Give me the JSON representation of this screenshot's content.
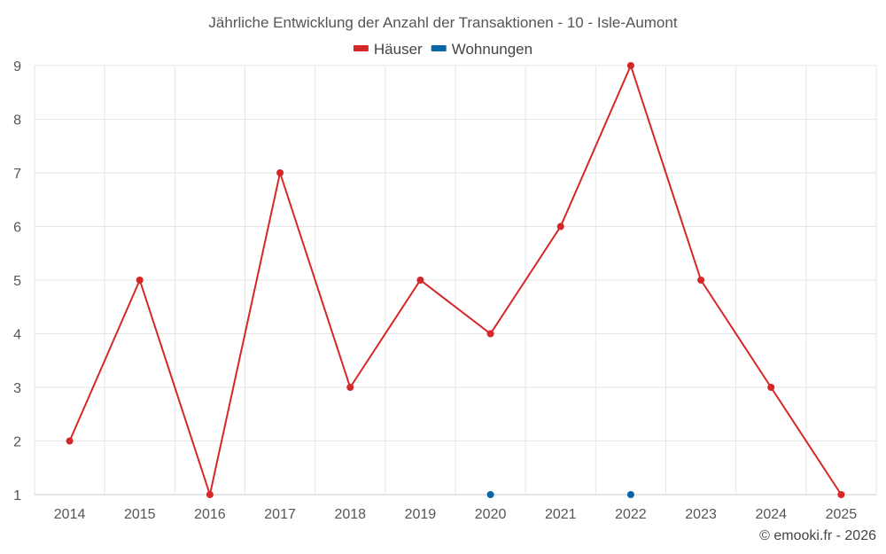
{
  "chart_data": {
    "type": "line",
    "title": "Jährliche Entwicklung der Anzahl der Transaktionen - 10 - Isle-Aumont",
    "categories": [
      "2014",
      "2015",
      "2016",
      "2017",
      "2018",
      "2019",
      "2020",
      "2021",
      "2022",
      "2023",
      "2024",
      "2025"
    ],
    "series": [
      {
        "name": "Häuser",
        "color": "#d62728",
        "values": [
          2,
          5,
          1,
          7,
          3,
          5,
          4,
          6,
          9,
          5,
          3,
          1
        ]
      },
      {
        "name": "Wohnungen",
        "color": "#0b66a8",
        "values": [
          null,
          null,
          null,
          null,
          null,
          null,
          1,
          null,
          1,
          null,
          null,
          null
        ]
      }
    ],
    "ylim": [
      1,
      9
    ],
    "yticks": [
      "1",
      "2",
      "3",
      "4",
      "5",
      "6",
      "7",
      "8",
      "9"
    ],
    "grid": true,
    "legend_position": "top-center",
    "credit": "© emooki.fr - 2026"
  }
}
